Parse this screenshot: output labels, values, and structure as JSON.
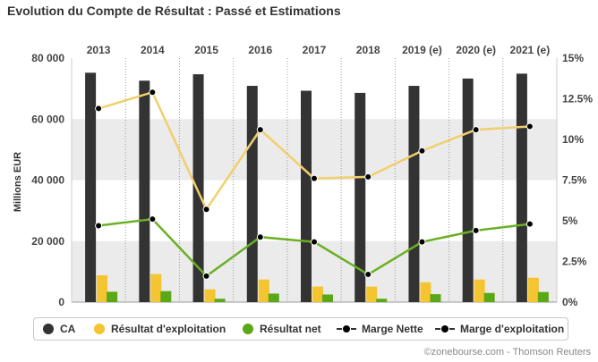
{
  "title": "Evolution du Compte de Résultat : Passé et Estimations",
  "credit": "©zonebourse.com - Thomson Reuters",
  "colors": {
    "ca": "#333333",
    "exploitation": "#f5c431",
    "net": "#5aa817",
    "marge_nette_line": "#6ab023",
    "marge_exploitation_line": "#f1cf6c",
    "marker": "#000000",
    "band": "#ebebeb"
  },
  "legend": [
    {
      "key": "ca",
      "label": "CA",
      "type": "dot"
    },
    {
      "key": "exploitation",
      "label": "Résultat d'exploitation",
      "type": "dot"
    },
    {
      "key": "net",
      "label": "Résultat net",
      "type": "dot"
    },
    {
      "key": "marge_nette_line",
      "label": "Marge Nette",
      "type": "line"
    },
    {
      "key": "marge_exploitation_line",
      "label": "Marge d'exploitation",
      "type": "line"
    }
  ],
  "chart_data": {
    "type": "bar",
    "categories": [
      "2013",
      "2014",
      "2015",
      "2016",
      "2017",
      "2018",
      "2019 (e)",
      "2020 (e)",
      "2021 (e)"
    ],
    "ylabel": "Millions EUR",
    "ylim": [
      0,
      80000
    ],
    "yticks": [
      "0",
      "20 000",
      "40 000",
      "60 000",
      "80 000"
    ],
    "y2lim": [
      0,
      15
    ],
    "y2ticks": [
      "0%",
      "2.5%",
      "5%",
      "7.5%",
      "10%",
      "12.5%",
      "15%"
    ],
    "legend_position": "bottom",
    "series": [
      {
        "name": "CA",
        "kind": "bar",
        "axis": "left",
        "values": [
          75200,
          72600,
          74700,
          70900,
          69300,
          68600,
          70900,
          73300,
          74900
        ]
      },
      {
        "name": "Résultat d'exploitation",
        "kind": "bar",
        "axis": "left",
        "values": [
          8800,
          9200,
          4200,
          7400,
          5100,
          5100,
          6500,
          7400,
          8000
        ]
      },
      {
        "name": "Résultat net",
        "kind": "bar",
        "axis": "left",
        "values": [
          3400,
          3600,
          1100,
          2800,
          2500,
          1100,
          2600,
          3000,
          3300
        ]
      },
      {
        "name": "Marge Nette",
        "kind": "line",
        "axis": "right",
        "values": [
          4.7,
          5.1,
          1.6,
          4.0,
          3.7,
          1.7,
          3.7,
          4.4,
          4.8
        ]
      },
      {
        "name": "Marge d'exploitation",
        "kind": "line",
        "axis": "right",
        "values": [
          11.9,
          12.9,
          5.7,
          10.6,
          7.6,
          7.7,
          9.3,
          10.6,
          10.8
        ]
      }
    ]
  }
}
